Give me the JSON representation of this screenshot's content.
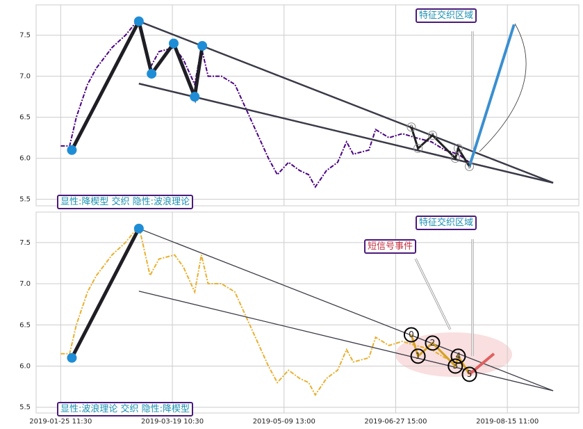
{
  "chart_data": [
    {
      "type": "line",
      "x": [
        0,
        4,
        7,
        12,
        16,
        23,
        29,
        35,
        40,
        44,
        51,
        55,
        60,
        63,
        66,
        72,
        78,
        83,
        88,
        93,
        97,
        102,
        107,
        111,
        114,
        119,
        124,
        128,
        131,
        138,
        141,
        147,
        153,
        159,
        166,
        172,
        178,
        183
      ],
      "series": [
        {
          "color": "#4b0082",
          "values": [
            6.15,
            6.15,
            6.5,
            6.9,
            7.1,
            7.35,
            7.5,
            7.7,
            7.1,
            7.3,
            7.35,
            7.2,
            6.9,
            7.35,
            7.0,
            7.0,
            6.9,
            6.6,
            6.3,
            6.0,
            5.8,
            5.95,
            5.85,
            5.8,
            5.65,
            5.85,
            5.95,
            6.2,
            6.05,
            6.1,
            6.35,
            6.25,
            6.3,
            6.25,
            6.2,
            6.1,
            6.05,
            5.95
          ]
        }
      ],
      "xlim": [
        -11,
        232
      ],
      "ylim": [
        5.42,
        7.87
      ],
      "yticks": [
        5.5,
        {
          "value": 6.0,
          "label": "6.0"
        },
        6.5,
        {
          "value": 7.0,
          "label": "7.0"
        },
        7.5
      ],
      "grid": true,
      "pivots": {
        "x": [
          5,
          35,
          40.7,
          50.6,
          60,
          63.4
        ],
        "y": [
          6.1,
          7.67,
          7.03,
          7.4,
          6.75,
          7.37
        ]
      },
      "wave_points": {
        "x": [
          157,
          160,
          166.5,
          176.7,
          178,
          183
        ],
        "y": [
          6.38,
          6.12,
          6.28,
          6.0,
          6.12,
          5.9
        ],
        "labels": [
          "0",
          "1",
          "2",
          "3",
          "4",
          "5"
        ]
      },
      "trend_lines": [
        {
          "x": [
            35,
            220.5
          ],
          "y": [
            7.67,
            5.7
          ]
        },
        {
          "x": [
            35,
            220.5
          ],
          "y": [
            6.91,
            5.7
          ]
        }
      ],
      "projection": {
        "x": [
          183,
          203
        ],
        "y": [
          5.9,
          7.63
        ],
        "color": "#3a8fd0"
      },
      "annotations": [
        "特征交织区域",
        "显性:降楔型 交织 隐性:波浪理论"
      ]
    },
    {
      "type": "line",
      "x": [
        0,
        4,
        7,
        12,
        16,
        23,
        29,
        35,
        40,
        44,
        51,
        55,
        60,
        63,
        66,
        72,
        78,
        83,
        88,
        93,
        97,
        102,
        107,
        111,
        114,
        119,
        124,
        128,
        131,
        138,
        141,
        147,
        153,
        159,
        166,
        172,
        178,
        183
      ],
      "series": [
        {
          "color": "#e8b030",
          "values": [
            6.15,
            6.15,
            6.5,
            6.9,
            7.1,
            7.35,
            7.5,
            7.7,
            7.1,
            7.3,
            7.35,
            7.2,
            6.9,
            7.35,
            7.0,
            7.0,
            6.9,
            6.6,
            6.3,
            6.0,
            5.8,
            5.95,
            5.85,
            5.8,
            5.65,
            5.85,
            5.95,
            6.2,
            6.05,
            6.1,
            6.35,
            6.25,
            6.3,
            6.25,
            6.2,
            6.1,
            6.05,
            5.95
          ]
        }
      ],
      "xlim": [
        -11,
        232
      ],
      "ylim": [
        5.43,
        7.87
      ],
      "yticks": [
        5.5,
        {
          "value": 6.0,
          "label": "6.0"
        },
        6.5,
        {
          "value": 7.0,
          "label": "7.0"
        },
        7.5
      ],
      "xticks": [
        {
          "value": 0,
          "label": "2019-01-25 11:30"
        },
        {
          "value": 50,
          "label": "2019-03-19 10:30"
        },
        {
          "value": 100,
          "label": "2019-05-09 13:00"
        },
        {
          "value": 150,
          "label": "2019-06-27 15:00"
        },
        {
          "value": 200,
          "label": "2019-08-15 11:00"
        }
      ],
      "grid": true,
      "pivots": {
        "x": [
          5,
          35
        ],
        "y": [
          6.1,
          7.67
        ]
      },
      "wave_points": {
        "x": [
          157,
          160,
          166.5,
          176.7,
          178,
          183
        ],
        "y": [
          6.38,
          6.12,
          6.28,
          6.0,
          6.12,
          5.9
        ],
        "labels": [
          "0",
          "1",
          "2",
          "3",
          "4",
          "5"
        ]
      },
      "trend_lines": [
        {
          "x": [
            35,
            220.5
          ],
          "y": [
            7.67,
            5.7
          ]
        },
        {
          "x": [
            35,
            220.5
          ],
          "y": [
            6.91,
            5.7
          ]
        }
      ],
      "projection": {
        "x": [
          183,
          194
        ],
        "y": [
          5.9,
          6.15
        ],
        "color": "#e06060"
      },
      "annotations": [
        "特征交织区域",
        "短信号事件",
        "显性:波浪理论 交织 隐性:降楔型"
      ]
    }
  ]
}
